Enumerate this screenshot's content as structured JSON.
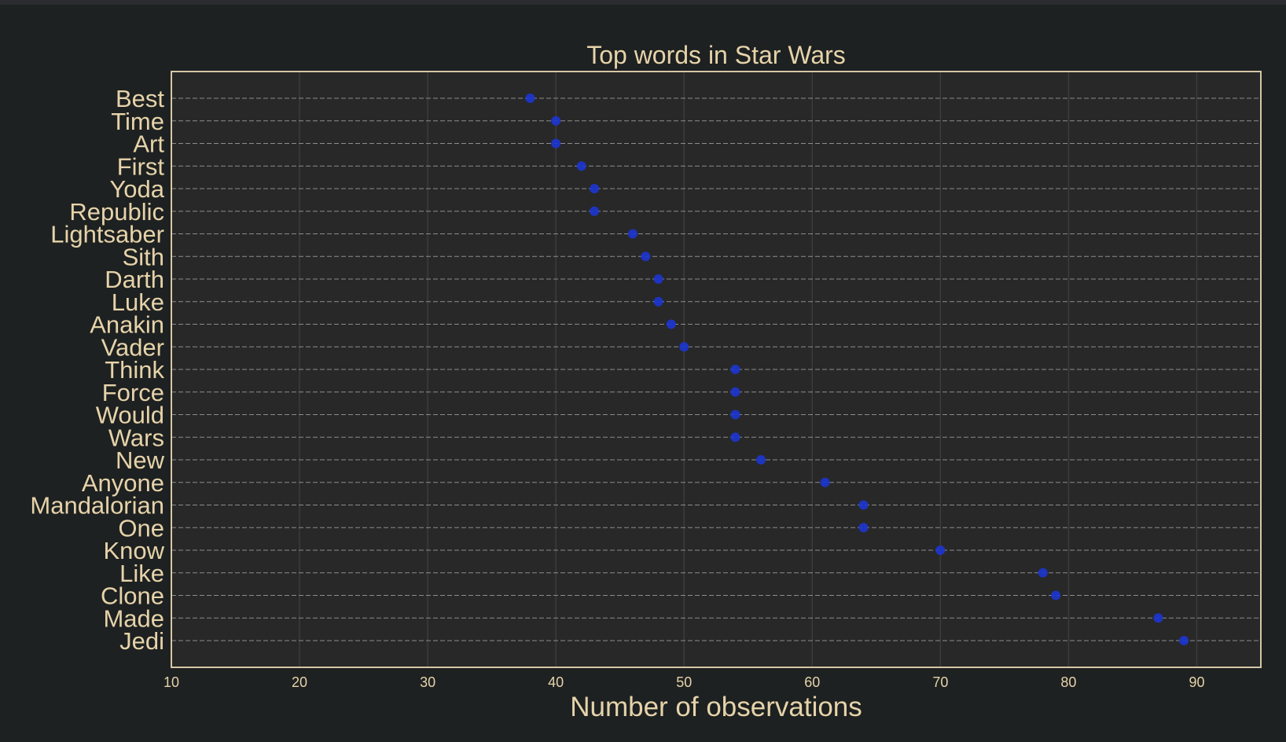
{
  "colors": {
    "page_background": "#1e2121",
    "plot_background": "#282828",
    "frame": "#d6c7a5",
    "text": "#e6d3aa",
    "grid_vertical": "#3c3c3c",
    "grid_horizontal": "#8c8c8c",
    "marker": "#1c35d1"
  },
  "chart_data": {
    "type": "scatter",
    "title": "Top words in Star Wars",
    "xlabel": "Number of observations",
    "ylabel": "",
    "xlim": [
      10,
      95
    ],
    "xticks": [
      10,
      20,
      30,
      40,
      50,
      60,
      70,
      80,
      90
    ],
    "grid": true,
    "legend": "none",
    "categories": [
      "Best",
      "Time",
      "Art",
      "First",
      "Yoda",
      "Republic",
      "Lightsaber",
      "Sith",
      "Darth",
      "Luke",
      "Anakin",
      "Vader",
      "Think",
      "Force",
      "Would",
      "Wars",
      "New",
      "Anyone",
      "Mandalorian",
      "One",
      "Know",
      "Like",
      "Clone",
      "Made",
      "Jedi"
    ],
    "values": [
      38,
      40,
      40,
      42,
      43,
      43,
      46,
      47,
      48,
      48,
      49,
      50,
      54,
      54,
      54,
      54,
      56,
      61,
      64,
      64,
      70,
      78,
      79,
      87,
      89
    ]
  }
}
